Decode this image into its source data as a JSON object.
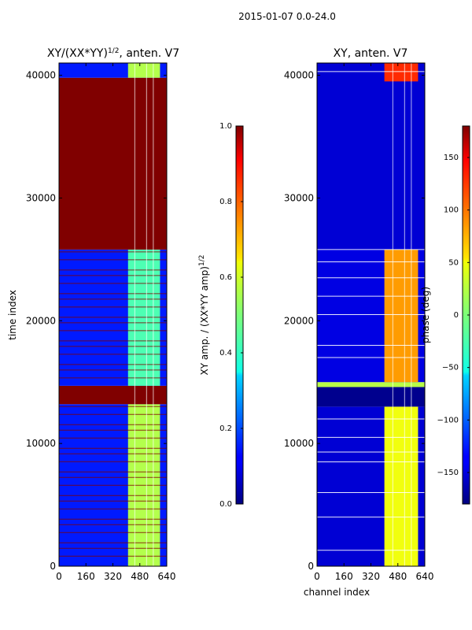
{
  "suptitle": "2015-01-07 0.0-24.0",
  "chart_data": [
    {
      "type": "heatmap",
      "title": "XY/(XX*YY)",
      "title_exponent": "1/2",
      "title_suffix": ", anten. V7",
      "xlabel": "",
      "ylabel": "time index",
      "xlim": [
        0,
        640
      ],
      "ylim": [
        0,
        41000
      ],
      "xticks": [
        "0",
        "160",
        "320",
        "480",
        "640"
      ],
      "xtick_values": [
        0,
        160,
        320,
        480,
        640
      ],
      "yticks": [
        "0",
        "10000",
        "20000",
        "30000",
        "40000"
      ],
      "ytick_values": [
        0,
        10000,
        20000,
        30000,
        40000
      ],
      "colorbar": {
        "label": "XY amp. / (XX*YY amp)",
        "label_exponent": "1/2",
        "range": [
          0.0,
          1.0
        ],
        "ticks": [
          "0.0",
          "0.2",
          "0.4",
          "0.6",
          "0.8",
          "1.0"
        ],
        "tick_values": [
          0.0,
          0.2,
          0.4,
          0.6,
          0.8,
          1.0
        ]
      },
      "regions": [
        {
          "y0": 0,
          "y1": 13200,
          "x0": 0,
          "x1": 640,
          "value": 0.15,
          "stripes": true
        },
        {
          "y0": 0,
          "y1": 13200,
          "x0": 410,
          "x1": 600,
          "value": 0.55
        },
        {
          "y0": 13200,
          "y1": 14700,
          "x0": 0,
          "x1": 640,
          "value": 1.0
        },
        {
          "y0": 14700,
          "y1": 25800,
          "x0": 0,
          "x1": 640,
          "value": 0.15,
          "stripes": true
        },
        {
          "y0": 14700,
          "y1": 25800,
          "x0": 410,
          "x1": 600,
          "value": 0.45
        },
        {
          "y0": 25800,
          "y1": 39800,
          "x0": 0,
          "x1": 640,
          "value": 1.0
        },
        {
          "y0": 39800,
          "y1": 41000,
          "x0": 0,
          "x1": 640,
          "value": 0.15
        },
        {
          "y0": 39800,
          "y1": 41000,
          "x0": 410,
          "x1": 600,
          "value": 0.55
        }
      ]
    },
    {
      "type": "heatmap",
      "title": "XY, anten. V7",
      "xlabel": "channel index",
      "ylabel": "",
      "xlim": [
        0,
        640
      ],
      "ylim": [
        0,
        41000
      ],
      "xticks": [
        "0",
        "160",
        "320",
        "480",
        "640"
      ],
      "xtick_values": [
        0,
        160,
        320,
        480,
        640
      ],
      "yticks": [
        "0",
        "10000",
        "20000",
        "30000",
        "40000"
      ],
      "ytick_values": [
        0,
        10000,
        20000,
        30000,
        40000
      ],
      "colorbar": {
        "label": "phase (deg)",
        "range": [
          -180,
          180
        ],
        "ticks": [
          "−150",
          "−100",
          "−50",
          "0",
          "50",
          "100",
          "150"
        ],
        "tick_values": [
          -150,
          -100,
          -50,
          0,
          50,
          100,
          150
        ]
      },
      "regions": [
        {
          "y0": 0,
          "y1": 13000,
          "x0": 0,
          "x1": 640,
          "value": -150
        },
        {
          "y0": 0,
          "y1": 13000,
          "x0": 400,
          "x1": 600,
          "value": 40
        },
        {
          "y0": 13000,
          "y1": 14600,
          "x0": 0,
          "x1": 640,
          "value": -175
        },
        {
          "y0": 14600,
          "y1": 15000,
          "x0": 0,
          "x1": 640,
          "value": 20
        },
        {
          "y0": 15000,
          "y1": 25800,
          "x0": 0,
          "x1": 640,
          "value": -145
        },
        {
          "y0": 15000,
          "y1": 25800,
          "x0": 400,
          "x1": 600,
          "value": 80
        },
        {
          "y0": 25800,
          "y1": 41000,
          "x0": 0,
          "x1": 640,
          "value": -150
        },
        {
          "y0": 39500,
          "y1": 41000,
          "x0": 400,
          "x1": 600,
          "value": 120
        }
      ]
    }
  ]
}
